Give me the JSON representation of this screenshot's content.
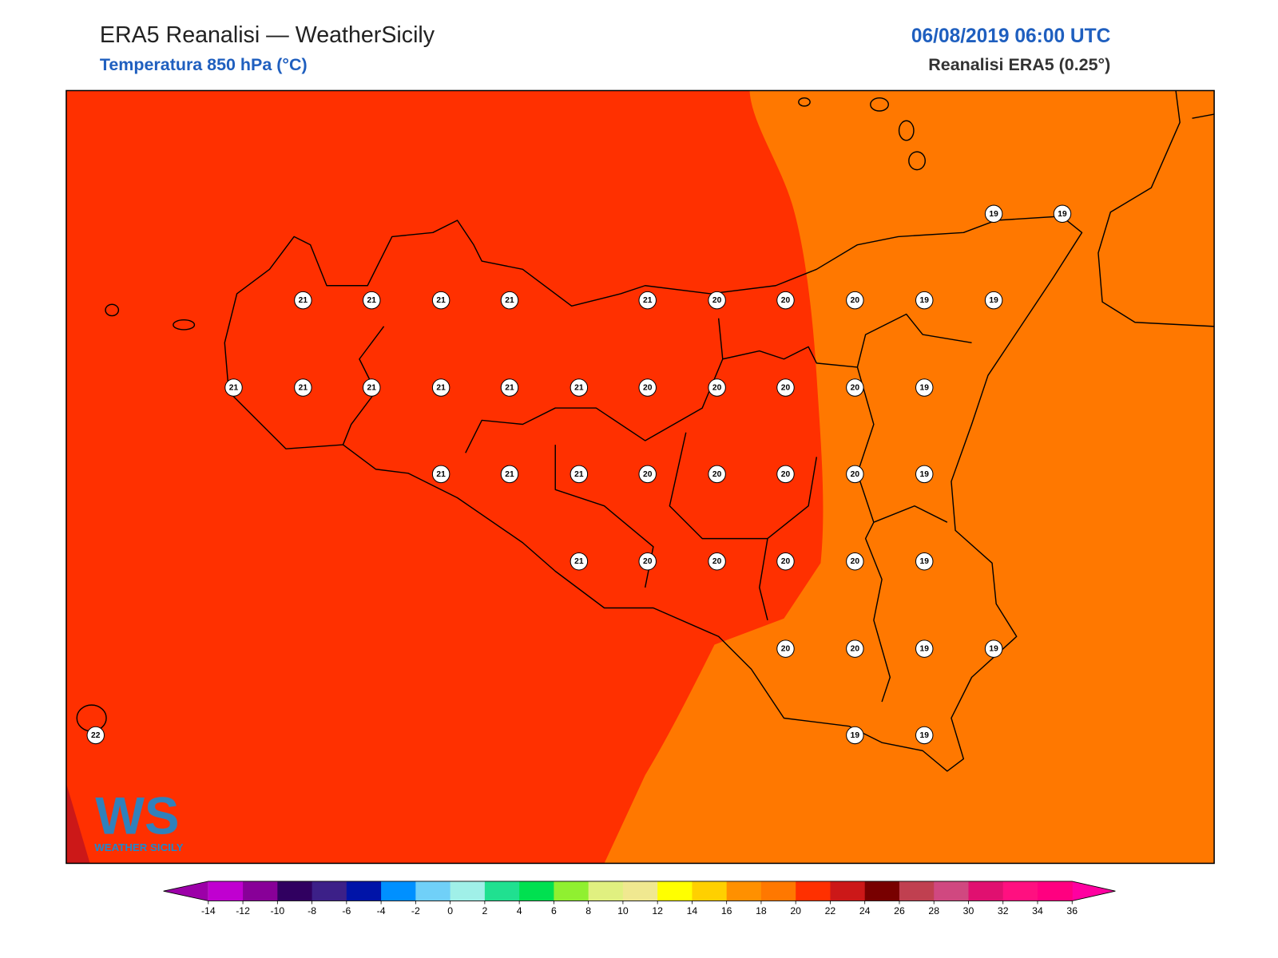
{
  "header": {
    "title": "ERA5 Reanalisi — WeatherSicily",
    "subtitle": "Temperatura 850 hPa (°C)",
    "date": "06/08/2019 06:00 UTC",
    "source": "Reanalisi ERA5 (0.25°)"
  },
  "map": {
    "labels": [
      19,
      19,
      21,
      21,
      21,
      21,
      21,
      20,
      20,
      20,
      19,
      19,
      21,
      21,
      21,
      21,
      21,
      21,
      20,
      20,
      20,
      20,
      19,
      21,
      21,
      21,
      20,
      20,
      20,
      20,
      19,
      21,
      20,
      20,
      20,
      20,
      19,
      20,
      20,
      19,
      19,
      22,
      19,
      19
    ]
  },
  "logo": {
    "mark": "WS",
    "text": "WEATHER SICILY"
  },
  "colorbar": {
    "ticks": [
      -14,
      -12,
      -10,
      -8,
      -6,
      -4,
      -2,
      0,
      2,
      4,
      6,
      8,
      10,
      12,
      14,
      16,
      18,
      20,
      22,
      24,
      26,
      28,
      30,
      32,
      34,
      36
    ],
    "colors": [
      "#c000d0",
      "#880098",
      "#300060",
      "#3c2088",
      "#0014a8",
      "#0090ff",
      "#70d0f8",
      "#a0f0e8",
      "#20e090",
      "#00e050",
      "#90f030",
      "#e0f080",
      "#f0e890",
      "#ffff00",
      "#ffd000",
      "#ff9000",
      "#ff7800",
      "#ff3000",
      "#cc1818",
      "#780000",
      "#c04050",
      "#d04880",
      "#e01070",
      "#ff1080",
      "#ff0080"
    ],
    "under": "#9c00a8",
    "over": "#ff00a0"
  }
}
